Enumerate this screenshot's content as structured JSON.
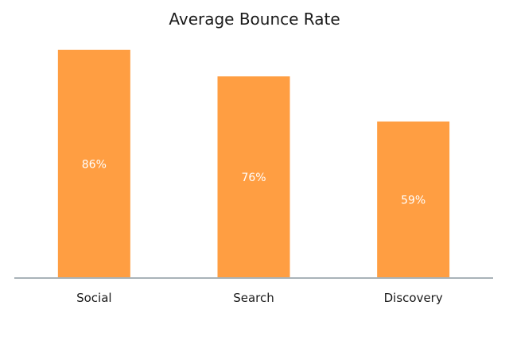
{
  "chart_data": {
    "type": "bar",
    "title": "Average Bounce Rate",
    "xlabel": "",
    "ylabel": "",
    "categories": [
      "Social",
      "Search",
      "Discovery"
    ],
    "values": [
      86,
      76,
      59
    ],
    "data_labels": [
      "86%",
      "76%",
      "59%"
    ],
    "unit": "%",
    "ylim": [
      0,
      100
    ],
    "grid": false,
    "legend": "none",
    "colors": {
      "bar": "#FF9E42",
      "axis": "#A9B3B8",
      "label_on_bar": "#FFFFFF",
      "text": "#1A1A1A"
    }
  }
}
